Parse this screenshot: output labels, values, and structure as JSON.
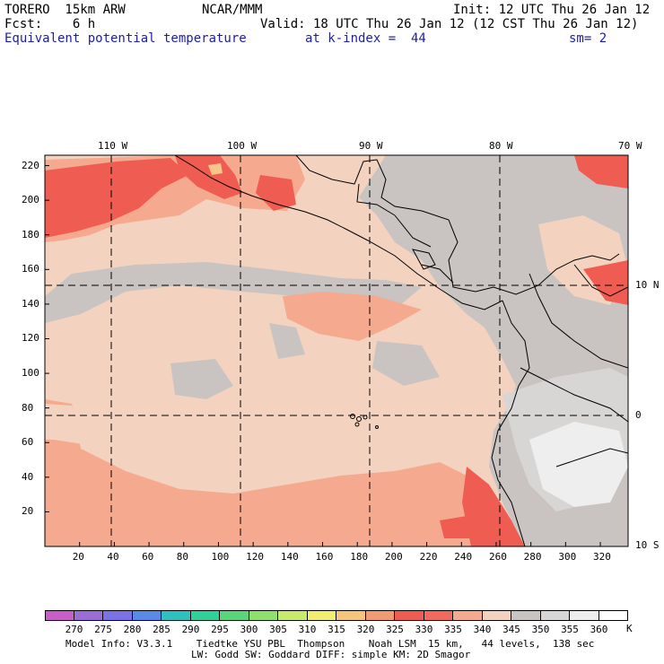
{
  "header": {
    "model": "TORERO  15km ARW",
    "center": "NCAR/MMM",
    "init": "Init: 12 UTC Thu 26 Jan 12",
    "fcst": "Fcst:    6 h",
    "valid": "Valid: 18 UTC Thu 26 Jan 12 (12 CST Thu 26 Jan 12)",
    "field": "Equivalent potential temperature",
    "level": "at k-index =  44",
    "smoothing": "sm= 2"
  },
  "map": {
    "lon_labels": [
      "110 W",
      "100 W",
      "90 W",
      "80 W",
      "70 W"
    ],
    "lat_labels": [
      "10 N",
      "0",
      "10 S"
    ],
    "x_ticks": [
      "20",
      "40",
      "60",
      "80",
      "100",
      "120",
      "140",
      "160",
      "180",
      "200",
      "220",
      "240",
      "260",
      "280",
      "300",
      "320"
    ],
    "y_ticks": [
      "20",
      "40",
      "60",
      "80",
      "100",
      "120",
      "140",
      "160",
      "180",
      "200",
      "220"
    ],
    "x_range": [
      0,
      336
    ],
    "y_range": [
      0,
      226
    ],
    "colors": {
      "ocean_base": "#f3d3bf",
      "warm": "#f5a98e",
      "hot": "#ef5c52",
      "land_gray": "#c9c4c1",
      "cool_gray": "#d8d6d5",
      "light": "#eeeeee",
      "hotspot": "#f7c78a"
    }
  },
  "colorbar": {
    "labels": [
      "270",
      "275",
      "280",
      "285",
      "290",
      "295",
      "300",
      "305",
      "310",
      "315",
      "320",
      "325",
      "330",
      "335",
      "340",
      "345",
      "350",
      "355",
      "360"
    ],
    "unit": "K",
    "colors": [
      "#c85fc8",
      "#9a6ed6",
      "#7a72e6",
      "#5a8ae8",
      "#2fc0c0",
      "#2fd09a",
      "#5ad67a",
      "#8ee06a",
      "#c8ea6a",
      "#f2ee70",
      "#f5c57a",
      "#f29a72",
      "#ef5c52",
      "#f26a5e",
      "#f5a98e",
      "#f3d3bf",
      "#c9c4c1",
      "#d8d6d5",
      "#eeeeee",
      "#ffffff"
    ]
  },
  "footer": {
    "line1": "Model Info: V3.3.1    Tiedtke YSU PBL  Thompson    Noah LSM  15 km,   44 levels,  138 sec",
    "line2": "LW: Godd SW: Goddard DIFF: simple KM: 2D Smagor"
  }
}
